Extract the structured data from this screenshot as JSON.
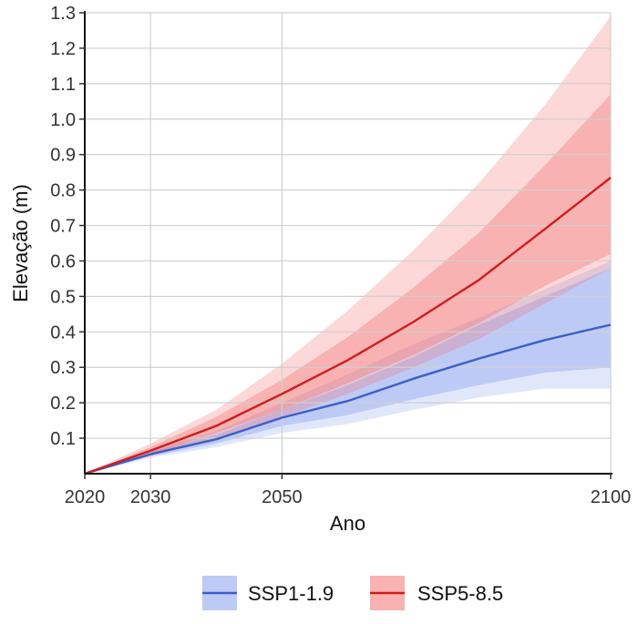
{
  "chart_data": {
    "type": "line",
    "xlabel": "Ano",
    "ylabel": "Elevação (m)",
    "xlim": [
      2020,
      2100
    ],
    "ylim": [
      0,
      1.3
    ],
    "x_ticks": [
      2020,
      2030,
      2050,
      2100
    ],
    "x_tick_labels": [
      "2020",
      "2030",
      "2050",
      "2100"
    ],
    "y_ticks": [
      0.1,
      0.2,
      0.3,
      0.4,
      0.5,
      0.6,
      0.7,
      0.8,
      0.9,
      1.0,
      1.1,
      1.2,
      1.3
    ],
    "y_tick_labels": [
      "0.1",
      "0.2",
      "0.3",
      "0.4",
      "0.5",
      "0.6",
      "0.7",
      "0.8",
      "0.9",
      "1.0",
      "1.1",
      "1.2",
      "1.3"
    ],
    "grid": true,
    "legend_position": "bottom",
    "x": [
      2020,
      2030,
      2040,
      2050,
      2060,
      2070,
      2080,
      2090,
      2100
    ],
    "series": [
      {
        "name": "SSP1-1.9",
        "color": "#3a5fc8",
        "values": [
          0.0,
          0.055,
          0.097,
          0.158,
          0.205,
          0.268,
          0.325,
          0.377,
          0.42
        ],
        "likely_range": {
          "low": [
            0.0,
            0.049,
            0.085,
            0.135,
            0.165,
            0.21,
            0.25,
            0.285,
            0.3
          ],
          "high": [
            0.0,
            0.062,
            0.11,
            0.18,
            0.25,
            0.33,
            0.42,
            0.5,
            0.58
          ]
        },
        "very_likely_range": {
          "low": [
            0.0,
            0.045,
            0.075,
            0.115,
            0.14,
            0.18,
            0.215,
            0.24,
            0.24
          ],
          "high": [
            0.0,
            0.066,
            0.12,
            0.2,
            0.28,
            0.365,
            0.44,
            0.52,
            0.6
          ]
        }
      },
      {
        "name": "SSP5-8.5",
        "color": "#d01c1c",
        "values": [
          0.0,
          0.065,
          0.135,
          0.225,
          0.32,
          0.428,
          0.547,
          0.69,
          0.835
        ],
        "likely_range": {
          "low": [
            0.0,
            0.055,
            0.115,
            0.18,
            0.255,
            0.335,
            0.425,
            0.53,
            0.62
          ],
          "high": [
            0.0,
            0.075,
            0.16,
            0.265,
            0.385,
            0.525,
            0.68,
            0.87,
            1.07
          ]
        },
        "very_likely_range": {
          "low": [
            0.0,
            0.05,
            0.1,
            0.16,
            0.225,
            0.3,
            0.38,
            0.48,
            0.58
          ],
          "high": [
            0.0,
            0.085,
            0.18,
            0.31,
            0.46,
            0.63,
            0.82,
            1.04,
            1.29
          ]
        }
      }
    ]
  }
}
